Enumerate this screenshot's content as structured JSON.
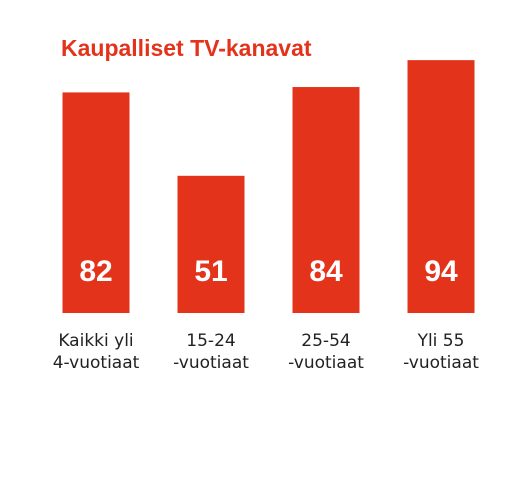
{
  "chart_data": {
    "type": "bar",
    "title": "Kaupalliset TV-kanavat",
    "categories": [
      [
        "Kaikki yli",
        "4-vuotiaat"
      ],
      [
        "15-24",
        "-vuotiaat"
      ],
      [
        "25-54",
        "-vuotiaat"
      ],
      [
        "Yli 55",
        "-vuotiaat"
      ]
    ],
    "values": [
      82,
      51,
      84,
      94
    ],
    "color": "#e4331b"
  }
}
